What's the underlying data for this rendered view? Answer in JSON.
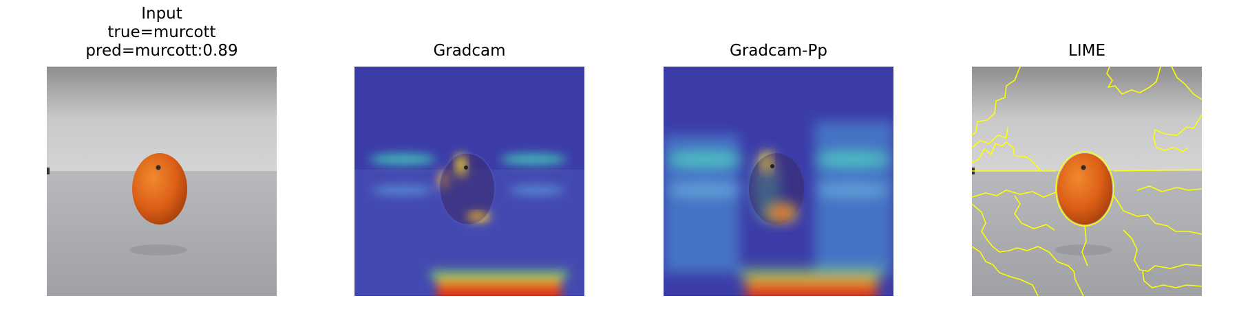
{
  "panels": [
    {
      "title_lines": [
        "Input",
        "true=murcott",
        "pred=murcott:0.89"
      ],
      "image": "input-photo"
    },
    {
      "title_lines": [
        "Gradcam"
      ],
      "image": "gradcam-heatmap-overlay"
    },
    {
      "title_lines": [
        "Gradcam-Pp"
      ],
      "image": "gradcam-pp-heatmap-overlay"
    },
    {
      "title_lines": [
        "LIME"
      ],
      "image": "lime-superpixel-boundaries"
    }
  ],
  "colors": {
    "background": "#ffffff",
    "lime_boundary": "#ffff00",
    "fruit": "#e0641a",
    "overlay_blue": "#3a3aa8"
  }
}
